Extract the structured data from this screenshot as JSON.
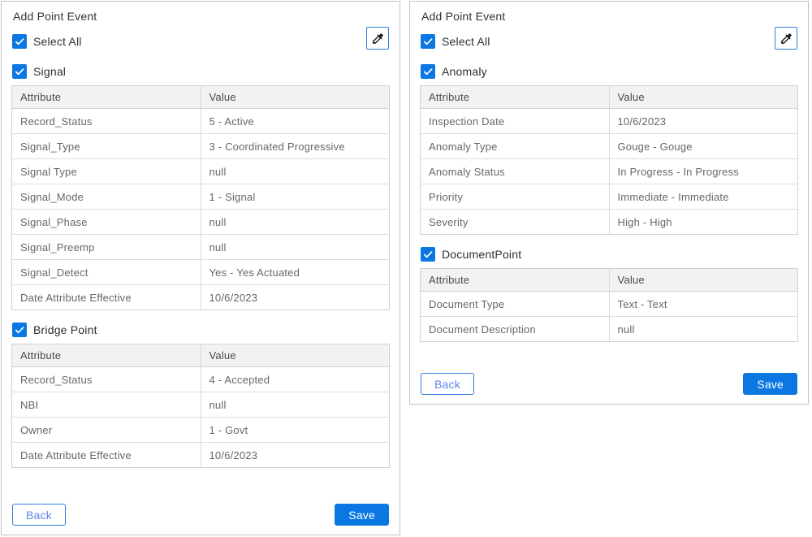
{
  "colors": {
    "accent_blue": "#0b77e2",
    "panel_border": "#c4c4c4",
    "table_header_bg": "#f2f2f0",
    "cell_text": "#6b6560",
    "back_text_blue": "#5d86ec"
  },
  "table_headers": {
    "attribute": "Attribute",
    "value": "Value"
  },
  "panels": [
    {
      "title": "Add Point Event",
      "select_all_label": "Select All",
      "select_all_checked": true,
      "eyedropper_icon": "eyedropper-icon",
      "groups": [
        {
          "label": "Signal",
          "checked": true,
          "rows": [
            {
              "attribute": "Record_Status",
              "value": "5 - Active"
            },
            {
              "attribute": "Signal_Type",
              "value": "3 - Coordinated Progressive"
            },
            {
              "attribute": "Signal Type",
              "value": "null"
            },
            {
              "attribute": "Signal_Mode",
              "value": "1 - Signal"
            },
            {
              "attribute": "Signal_Phase",
              "value": "null"
            },
            {
              "attribute": "Signal_Preemp",
              "value": "null"
            },
            {
              "attribute": "Signal_Detect",
              "value": "Yes - Yes Actuated"
            },
            {
              "attribute": "Date Attribute Effective",
              "value": "10/6/2023"
            }
          ]
        },
        {
          "label": "Bridge Point",
          "checked": true,
          "rows": [
            {
              "attribute": "Record_Status",
              "value": "4 - Accepted"
            },
            {
              "attribute": "NBI",
              "value": "null"
            },
            {
              "attribute": "Owner",
              "value": "1 - Govt"
            },
            {
              "attribute": "Date Attribute Effective",
              "value": "10/6/2023"
            }
          ]
        }
      ],
      "footer": {
        "back_label": "Back",
        "save_label": "Save"
      }
    },
    {
      "title": "Add Point Event",
      "select_all_label": "Select All",
      "select_all_checked": true,
      "eyedropper_icon": "eyedropper-icon",
      "groups": [
        {
          "label": "Anomaly",
          "checked": true,
          "rows": [
            {
              "attribute": "Inspection Date",
              "value": "10/6/2023"
            },
            {
              "attribute": "Anomaly Type",
              "value": "Gouge - Gouge"
            },
            {
              "attribute": "Anomaly Status",
              "value": "In Progress - In Progress"
            },
            {
              "attribute": "Priority",
              "value": "Immediate - Immediate"
            },
            {
              "attribute": "Severity",
              "value": "High - High"
            }
          ]
        },
        {
          "label": "DocumentPoint",
          "checked": true,
          "rows": [
            {
              "attribute": "Document Type",
              "value": "Text - Text"
            },
            {
              "attribute": "Document Description",
              "value": "null"
            }
          ]
        }
      ],
      "footer": {
        "back_label": "Back",
        "save_label": "Save"
      }
    }
  ]
}
